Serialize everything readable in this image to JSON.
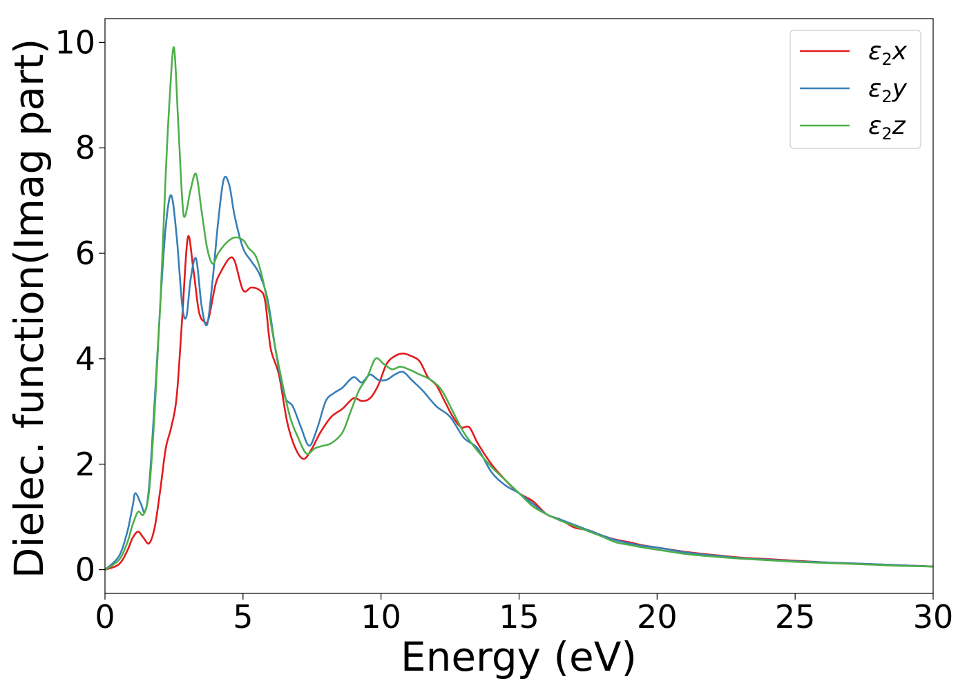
{
  "chart_data": {
    "type": "line",
    "title": "",
    "xlabel": "Energy (eV)",
    "ylabel": "Dielec. function(Imag part)",
    "xlim": [
      0,
      30
    ],
    "ylim": [
      -0.45,
      10.45
    ],
    "xticks": [
      0,
      5,
      10,
      15,
      20,
      25,
      30
    ],
    "xtick_labels": [
      "0",
      "5",
      "10",
      "15",
      "20",
      "25",
      "30"
    ],
    "yticks": [
      0,
      2,
      4,
      6,
      8,
      10
    ],
    "ytick_labels": [
      "0",
      "2",
      "4",
      "6",
      "8",
      "10"
    ],
    "grid": false,
    "legend_position": "top-right",
    "series": [
      {
        "name": "ε2x",
        "legend_main": "ε",
        "legend_sub": "2",
        "legend_suffix": "x",
        "color": "#e41a1c",
        "x": [
          0,
          0.5,
          0.8,
          1.0,
          1.2,
          1.4,
          1.6,
          1.8,
          2.0,
          2.2,
          2.4,
          2.6,
          2.8,
          3.0,
          3.2,
          3.4,
          3.6,
          3.75,
          4.0,
          4.2,
          4.5,
          4.7,
          5.0,
          5.3,
          5.6,
          5.8,
          6.0,
          6.3,
          6.6,
          6.9,
          7.2,
          7.5,
          7.8,
          8.2,
          8.6,
          9.0,
          9.3,
          9.6,
          9.9,
          10.2,
          10.5,
          10.8,
          11.1,
          11.4,
          11.7,
          12.0,
          12.3,
          12.6,
          12.9,
          13.2,
          13.5,
          14.0,
          14.5,
          15.0,
          15.5,
          16.0,
          16.5,
          17.0,
          17.5,
          18.0,
          18.5,
          19.0,
          19.5,
          20.0,
          21.0,
          22.0,
          23.0,
          24.0,
          25.0,
          26.0,
          27.0,
          28.0,
          29.0,
          30.0
        ],
        "values": [
          0.0,
          0.1,
          0.35,
          0.6,
          0.72,
          0.6,
          0.5,
          0.8,
          1.5,
          2.3,
          2.7,
          3.3,
          4.8,
          6.3,
          5.7,
          4.9,
          4.7,
          4.75,
          5.4,
          5.65,
          5.9,
          5.85,
          5.3,
          5.35,
          5.3,
          5.1,
          4.2,
          3.7,
          2.8,
          2.3,
          2.1,
          2.3,
          2.6,
          2.9,
          3.05,
          3.25,
          3.2,
          3.25,
          3.5,
          3.9,
          4.05,
          4.1,
          4.05,
          3.95,
          3.65,
          3.5,
          3.2,
          2.9,
          2.7,
          2.7,
          2.4,
          2.0,
          1.7,
          1.45,
          1.3,
          1.05,
          0.95,
          0.8,
          0.75,
          0.65,
          0.57,
          0.52,
          0.46,
          0.42,
          0.34,
          0.28,
          0.23,
          0.2,
          0.17,
          0.14,
          0.12,
          0.1,
          0.08,
          0.06
        ]
      },
      {
        "name": "ε2y",
        "legend_main": "ε",
        "legend_sub": "2",
        "legend_suffix": "y",
        "color": "#377eb8",
        "x": [
          0,
          0.5,
          0.8,
          1.0,
          1.1,
          1.3,
          1.45,
          1.6,
          1.8,
          2.0,
          2.2,
          2.4,
          2.6,
          2.8,
          2.95,
          3.1,
          3.3,
          3.5,
          3.7,
          3.9,
          4.1,
          4.3,
          4.5,
          4.7,
          5.0,
          5.3,
          5.6,
          5.9,
          6.2,
          6.5,
          6.8,
          7.1,
          7.4,
          7.7,
          8.0,
          8.3,
          8.6,
          9.0,
          9.3,
          9.6,
          9.9,
          10.2,
          10.5,
          10.8,
          11.1,
          11.5,
          12.0,
          12.5,
          13.0,
          13.5,
          14.0,
          14.5,
          15.0,
          15.5,
          16.0,
          16.5,
          17.0,
          17.5,
          18.0,
          18.5,
          19.0,
          19.5,
          20.0,
          21.0,
          22.0,
          23.0,
          24.0,
          25.0,
          26.0,
          27.0,
          28.0,
          29.0,
          30.0
        ],
        "values": [
          0.0,
          0.25,
          0.7,
          1.2,
          1.45,
          1.25,
          1.1,
          1.6,
          3.2,
          5.0,
          6.5,
          7.1,
          6.3,
          5.0,
          4.8,
          5.5,
          5.9,
          5.0,
          4.65,
          5.5,
          6.6,
          7.4,
          7.3,
          6.7,
          6.1,
          5.85,
          5.6,
          5.1,
          4.1,
          3.3,
          3.1,
          2.7,
          2.35,
          2.7,
          3.2,
          3.35,
          3.45,
          3.65,
          3.55,
          3.7,
          3.6,
          3.6,
          3.7,
          3.75,
          3.6,
          3.4,
          3.1,
          2.9,
          2.5,
          2.3,
          1.85,
          1.6,
          1.45,
          1.25,
          1.05,
          0.95,
          0.85,
          0.75,
          0.65,
          0.56,
          0.5,
          0.45,
          0.42,
          0.33,
          0.27,
          0.22,
          0.19,
          0.16,
          0.14,
          0.12,
          0.1,
          0.08,
          0.06
        ]
      },
      {
        "name": "ε2z",
        "legend_main": "ε",
        "legend_sub": "2",
        "legend_suffix": "z",
        "color": "#4daf4a",
        "x": [
          0,
          0.5,
          0.8,
          1.0,
          1.2,
          1.4,
          1.6,
          1.8,
          2.0,
          2.2,
          2.35,
          2.5,
          2.65,
          2.8,
          2.9,
          3.1,
          3.3,
          3.5,
          3.7,
          3.9,
          4.1,
          4.4,
          4.7,
          5.0,
          5.2,
          5.5,
          5.8,
          6.1,
          6.4,
          6.7,
          7.0,
          7.3,
          7.6,
          7.9,
          8.2,
          8.6,
          8.9,
          9.2,
          9.5,
          9.8,
          10.1,
          10.4,
          10.7,
          11.0,
          11.4,
          11.8,
          12.2,
          12.6,
          13.0,
          13.5,
          14.0,
          14.5,
          15.0,
          15.5,
          16.0,
          16.5,
          17.0,
          17.5,
          18.0,
          18.5,
          19.0,
          19.5,
          20.0,
          21.0,
          22.0,
          23.0,
          24.0,
          25.0,
          26.0,
          27.0,
          28.0,
          29.0,
          30.0
        ],
        "values": [
          0.0,
          0.18,
          0.5,
          0.85,
          1.1,
          1.05,
          1.5,
          3.0,
          5.0,
          7.5,
          9.0,
          9.9,
          8.5,
          7.0,
          6.7,
          7.2,
          7.5,
          6.8,
          6.1,
          5.8,
          6.0,
          6.2,
          6.3,
          6.25,
          6.1,
          5.9,
          5.3,
          4.4,
          3.6,
          2.9,
          2.5,
          2.2,
          2.3,
          2.35,
          2.4,
          2.6,
          3.0,
          3.4,
          3.65,
          4.0,
          3.9,
          3.8,
          3.85,
          3.8,
          3.7,
          3.6,
          3.4,
          3.0,
          2.6,
          2.25,
          1.95,
          1.7,
          1.45,
          1.2,
          1.05,
          0.93,
          0.83,
          0.73,
          0.63,
          0.52,
          0.47,
          0.42,
          0.38,
          0.3,
          0.25,
          0.21,
          0.18,
          0.15,
          0.13,
          0.11,
          0.09,
          0.07,
          0.06
        ]
      }
    ]
  }
}
